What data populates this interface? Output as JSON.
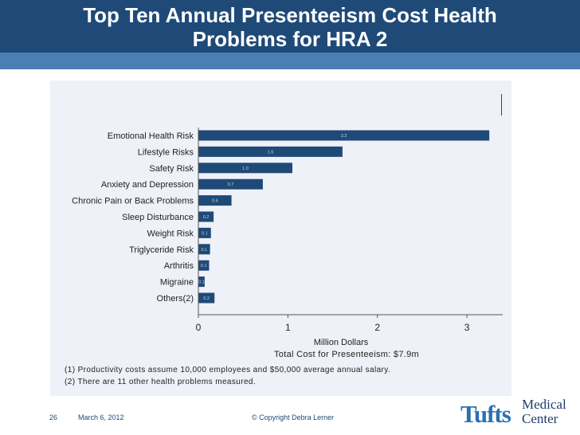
{
  "slide": {
    "title_line1": "Top Ten Annual Presenteeism Cost Health",
    "title_line2": "Problems for HRA 2",
    "notes": [
      "(1) Productivity costs assume 10,000 employees and $50,000 average annual salary.",
      "(2) There are 11 other health problems measured."
    ],
    "page_number": "26",
    "date": "March 6, 2012",
    "copyright": "© Copyright Debra Lerner",
    "logo_main": "Tufts",
    "logo_top": "Medical",
    "logo_bottom": "Center"
  },
  "colors": {
    "bar": "#1f4a78",
    "title_band": "#1f4a78",
    "accent": "#2a71b5"
  },
  "chart_data": {
    "type": "bar",
    "orientation": "horizontal",
    "categories": [
      "Emotional Health Risk",
      "Lifestyle Risks",
      "Safety Risk",
      "Anxiety and Depression",
      "Chronic Pain or Back Problems",
      "Sleep Disturbance",
      "Weight Risk",
      "Triglyceride Risk",
      "Arthritis",
      "Migraine",
      "Others(2)"
    ],
    "values": [
      3.25,
      1.61,
      1.05,
      0.72,
      0.37,
      0.17,
      0.14,
      0.13,
      0.12,
      0.07,
      0.18
    ],
    "data_labels": [
      "3.2",
      "1.6",
      "1.0",
      "0.7",
      "0.4",
      "0.2",
      "0.1",
      "0.1",
      "0.1",
      "0.1",
      "0.2"
    ],
    "xlim": [
      0,
      3.4
    ],
    "xticks": [
      "0",
      "1",
      "2",
      "3"
    ],
    "xtick_values": [
      0,
      1,
      2,
      3
    ],
    "xlabel": "Million Dollars",
    "subtitle": "Total Cost for Presenteeism: $7.9m"
  }
}
